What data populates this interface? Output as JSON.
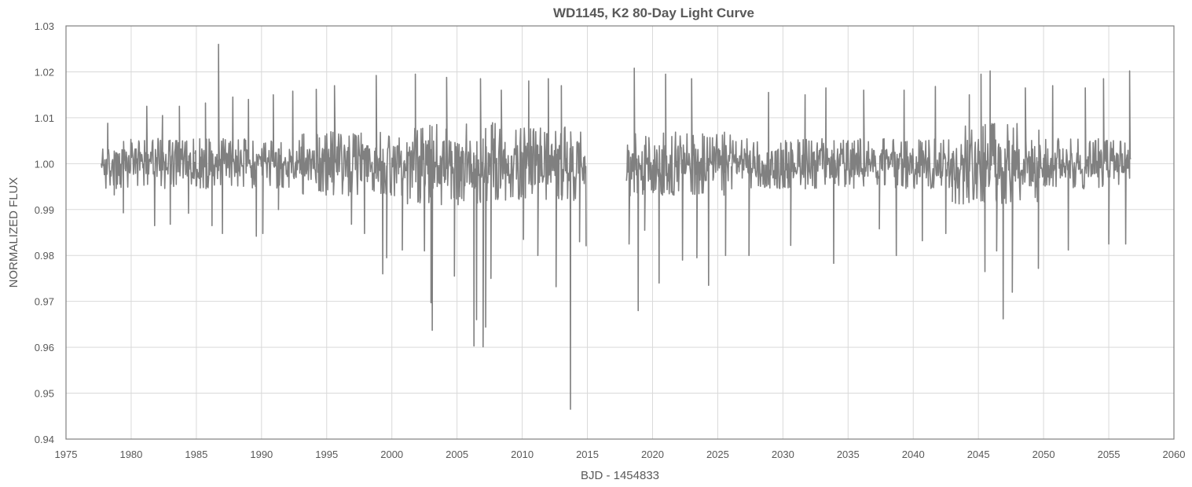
{
  "chart_data": {
    "type": "line",
    "title": "WD1145, K2 80-Day Light Curve",
    "xlabel": "BJD - 1454833",
    "ylabel": "NORMALIZED FLUX",
    "xlim": [
      1975,
      2060
    ],
    "ylim": [
      0.94,
      1.03
    ],
    "x_ticks": [
      "1975",
      "1980",
      "1985",
      "1990",
      "1995",
      "2000",
      "2005",
      "2010",
      "2015",
      "2020",
      "2025",
      "2030",
      "2035",
      "2040",
      "2045",
      "2050",
      "2055",
      "2060"
    ],
    "y_ticks": [
      "0.94",
      "0.95",
      "0.96",
      "0.97",
      "0.98",
      "0.99",
      "1.00",
      "1.01",
      "1.02",
      "1.03"
    ],
    "grid": true,
    "legend": "none",
    "colors": {
      "series": "#808080",
      "grid": "#d9d9d9",
      "frame": "#808080",
      "text": "#595959"
    },
    "series": [
      {
        "segments": [
          {
            "x_range": [
              1977.7,
              1984.9
            ],
            "baseline": 1.0,
            "typical_scatter": [
              0.9945,
              1.0055
            ],
            "extreme_points": [
              [
                1978.2,
                1.0088
              ],
              [
                1978.7,
                0.9932
              ],
              [
                1979.4,
                0.9893
              ],
              [
                1981.2,
                1.0125
              ],
              [
                1981.8,
                0.9865
              ],
              [
                1982.4,
                1.0105
              ],
              [
                1983.0,
                0.9868
              ],
              [
                1983.7,
                1.0125
              ],
              [
                1984.4,
                0.9892
              ]
            ]
          },
          {
            "x_range": [
              1984.9,
              1993.0
            ],
            "baseline": 1.0,
            "typical_scatter": [
              0.9945,
              1.0055
            ],
            "extreme_points": [
              [
                1985.7,
                1.0132
              ],
              [
                1986.2,
                0.9865
              ],
              [
                1986.7,
                1.026
              ],
              [
                1987.0,
                0.9848
              ],
              [
                1987.8,
                1.0145
              ],
              [
                1989.0,
                1.014
              ],
              [
                1989.6,
                0.9842
              ],
              [
                1990.1,
                0.9848
              ],
              [
                1990.9,
                1.015
              ],
              [
                1991.3,
                0.99
              ],
              [
                1992.4,
                1.0158
              ]
            ]
          },
          {
            "x_range": [
              1993.0,
              2001.0
            ],
            "baseline": 1.0,
            "typical_scatter": [
              0.993,
              1.007
            ],
            "extreme_points": [
              [
                1994.2,
                1.0162
              ],
              [
                1995.6,
                1.017
              ],
              [
                1996.9,
                0.9868
              ],
              [
                1997.9,
                0.9848
              ],
              [
                1998.8,
                1.0192
              ],
              [
                1999.3,
                0.976
              ],
              [
                1999.6,
                0.9795
              ],
              [
                2000.8,
                0.9812
              ]
            ]
          },
          {
            "x_range": [
              2001.0,
              2009.0
            ],
            "baseline": 1.0,
            "typical_scatter": [
              0.991,
              1.009
            ],
            "extreme_points": [
              [
                2001.8,
                1.0195
              ],
              [
                2002.5,
                0.981
              ],
              [
                2003.1,
                0.9637
              ],
              [
                2003.0,
                0.9697
              ],
              [
                2004.2,
                1.0188
              ],
              [
                2004.8,
                0.9755
              ],
              [
                2006.3,
                0.9603
              ],
              [
                2006.5,
                0.966
              ],
              [
                2006.8,
                1.0185
              ],
              [
                2007.0,
                0.9601
              ],
              [
                2007.2,
                0.9644
              ],
              [
                2007.6,
                0.975
              ],
              [
                2008.4,
                1.016
              ]
            ]
          },
          {
            "x_range": [
              2009.0,
              2014.9
            ],
            "baseline": 1.0,
            "typical_scatter": [
              0.992,
              1.008
            ],
            "extreme_points": [
              [
                2010.1,
                0.9835
              ],
              [
                2010.5,
                1.018
              ],
              [
                2011.2,
                0.98
              ],
              [
                2012.0,
                1.0185
              ],
              [
                2012.6,
                0.9732
              ],
              [
                2013.0,
                1.017
              ],
              [
                2013.7,
                0.9465
              ],
              [
                2014.4,
                0.983
              ],
              [
                2014.9,
                0.982
              ]
            ]
          },
          {
            "x_range": [
              2018.0,
              2026.0
            ],
            "baseline": 1.0,
            "typical_scatter": [
              0.993,
              1.007
            ],
            "extreme_points": [
              [
                2018.2,
                0.9825
              ],
              [
                2018.6,
                1.0208
              ],
              [
                2018.9,
                0.968
              ],
              [
                2019.4,
                0.9855
              ],
              [
                2020.5,
                0.974
              ],
              [
                2021.0,
                1.0195
              ],
              [
                2022.3,
                0.979
              ],
              [
                2023.0,
                1.0185
              ],
              [
                2023.4,
                0.9795
              ],
              [
                2024.3,
                0.9735
              ],
              [
                2025.6,
                0.98
              ]
            ]
          },
          {
            "x_range": [
              2026.0,
              2034.0
            ],
            "baseline": 1.0,
            "typical_scatter": [
              0.9945,
              1.0055
            ],
            "extreme_points": [
              [
                2027.4,
                0.98
              ],
              [
                2028.9,
                1.0155
              ],
              [
                2030.6,
                0.9822
              ],
              [
                2031.7,
                1.015
              ],
              [
                2033.3,
                1.0165
              ],
              [
                2033.9,
                0.9783
              ]
            ]
          },
          {
            "x_range": [
              2034.0,
              2043.0
            ],
            "baseline": 1.0,
            "typical_scatter": [
              0.9945,
              1.0055
            ],
            "extreme_points": [
              [
                2036.2,
                1.016
              ],
              [
                2037.4,
                0.9858
              ],
              [
                2038.7,
                0.98
              ],
              [
                2039.3,
                1.016
              ],
              [
                2040.7,
                0.9832
              ],
              [
                2041.7,
                1.0168
              ],
              [
                2042.5,
                0.9848
              ]
            ]
          },
          {
            "x_range": [
              2043.0,
              2050.0
            ],
            "baseline": 1.0,
            "typical_scatter": [
              0.991,
              1.009
            ],
            "extreme_points": [
              [
                2044.3,
                1.015
              ],
              [
                2045.2,
                1.0195
              ],
              [
                2045.5,
                0.9765
              ],
              [
                2045.9,
                1.0202
              ],
              [
                2046.4,
                0.981
              ],
              [
                2046.9,
                0.9662
              ],
              [
                2047.6,
                0.972
              ],
              [
                2048.6,
                1.0165
              ],
              [
                2049.6,
                0.9772
              ]
            ]
          },
          {
            "x_range": [
              2050.0,
              2056.7
            ],
            "baseline": 1.0,
            "typical_scatter": [
              0.9945,
              1.0055
            ],
            "extreme_points": [
              [
                2050.7,
                1.017
              ],
              [
                2051.9,
                0.9812
              ],
              [
                2053.2,
                1.0165
              ],
              [
                2054.6,
                1.0185
              ],
              [
                2055.0,
                0.9825
              ],
              [
                2056.3,
                0.9825
              ],
              [
                2056.6,
                1.0202
              ]
            ]
          }
        ]
      }
    ]
  }
}
